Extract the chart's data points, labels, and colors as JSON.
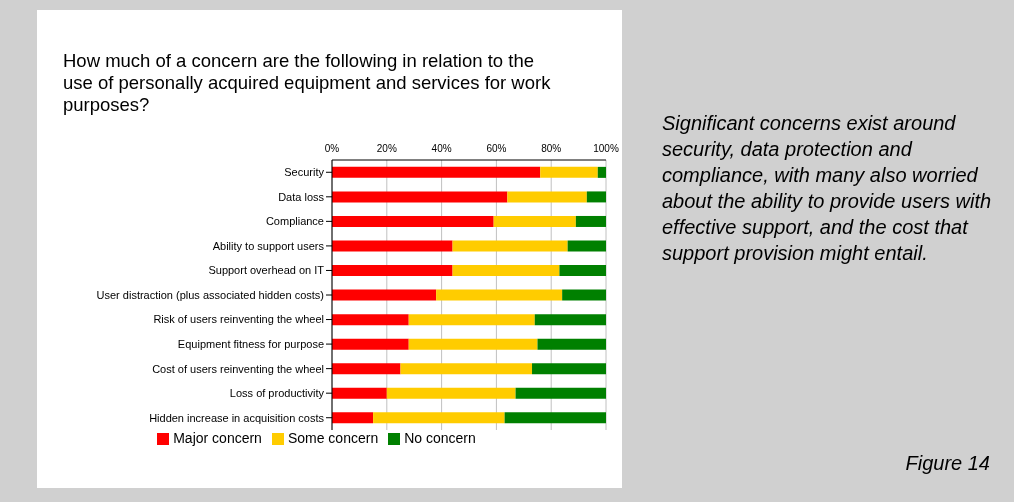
{
  "chart_data": {
    "type": "bar",
    "orientation": "horizontal",
    "stacked": true,
    "title": "How much of a concern are the following in relation to the use of personally acquired equipment and services for work purposes?",
    "categories": [
      "Security",
      "Data loss",
      "Compliance",
      "Ability to support users",
      "Support overhead on IT",
      "User distraction (plus associated hidden costs)",
      "Risk of users reinventing the wheel",
      "Equipment fitness for purpose",
      "Cost of users reinventing the wheel",
      "Loss of productivity",
      "Hidden increase in acquisition costs"
    ],
    "series": [
      {
        "name": "Major concern",
        "color": "#ff0000",
        "values": [
          76,
          64,
          59,
          44,
          44,
          38,
          28,
          28,
          25,
          20,
          15
        ]
      },
      {
        "name": "Some concern",
        "color": "#ffcc00",
        "values": [
          21,
          29,
          30,
          42,
          39,
          46,
          46,
          47,
          48,
          47,
          48
        ]
      },
      {
        "name": "No concern",
        "color": "#008000",
        "values": [
          3,
          7,
          11,
          14,
          17,
          16,
          26,
          25,
          27,
          33,
          37
        ]
      }
    ],
    "xlim": [
      0,
      100
    ],
    "xticks": [
      {
        "value": 0,
        "label": "0%"
      },
      {
        "value": 20,
        "label": "20%"
      },
      {
        "value": 40,
        "label": "40%"
      },
      {
        "value": 60,
        "label": "60%"
      },
      {
        "value": 80,
        "label": "80%"
      },
      {
        "value": 100,
        "label": "100%"
      }
    ],
    "grid": "x",
    "legend": "bottom",
    "annotations": [
      "Significant concerns exist around security, data protection and compliance, with many also worried about the ability to provide users with effective support, and the cost that support provision might entail.",
      "Figure 14"
    ]
  }
}
